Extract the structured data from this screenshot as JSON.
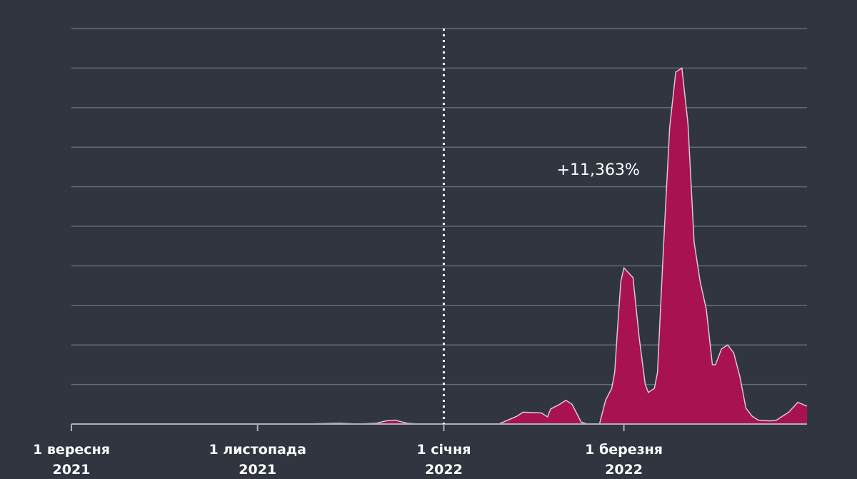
{
  "chart_data": {
    "type": "area",
    "title": "",
    "xlabel": "",
    "ylabel": "",
    "grid": true,
    "y_tick_labels_shown": false,
    "colors": {
      "background": "#30353f",
      "grid": "#646a74",
      "axis": "#aab0b8",
      "fill": "#a8124f",
      "line": "#ffffff",
      "marker": "#ffffff"
    },
    "x_ticks": [
      {
        "date": "2021-09-01",
        "line1": "1 вересня",
        "line2": "2021"
      },
      {
        "date": "2021-11-01",
        "line1": "1 листопада",
        "line2": "2021"
      },
      {
        "date": "2022-01-01",
        "line1": "1 січня",
        "line2": "2022"
      },
      {
        "date": "2022-03-01",
        "line1": "1 березня",
        "line2": "2022"
      }
    ],
    "xlim": [
      "2021-09-01",
      "2022-04-30"
    ],
    "ylim": [
      0,
      10
    ],
    "marker_line": {
      "date": "2022-01-01",
      "style": "dotted"
    },
    "annotation": {
      "text": "+11,363%",
      "date": "2022-02-07",
      "y": 6.3
    },
    "series": [
      {
        "points": [
          [
            "2021-09-01",
            0
          ],
          [
            "2021-10-15",
            0
          ],
          [
            "2021-11-15",
            0
          ],
          [
            "2021-11-28",
            0.02
          ],
          [
            "2021-12-04",
            0
          ],
          [
            "2021-12-10",
            0.02
          ],
          [
            "2021-12-13",
            0.08
          ],
          [
            "2021-12-16",
            0.1
          ],
          [
            "2021-12-20",
            0.02
          ],
          [
            "2021-12-24",
            0
          ],
          [
            "2022-01-01",
            0
          ],
          [
            "2022-01-19",
            0
          ],
          [
            "2022-01-22",
            0.1
          ],
          [
            "2022-01-25",
            0.2
          ],
          [
            "2022-01-27",
            0.3
          ],
          [
            "2022-02-02",
            0.28
          ],
          [
            "2022-02-04",
            0.18
          ],
          [
            "2022-02-05",
            0.38
          ],
          [
            "2022-02-08",
            0.5
          ],
          [
            "2022-02-10",
            0.6
          ],
          [
            "2022-02-12",
            0.5
          ],
          [
            "2022-02-14",
            0.2
          ],
          [
            "2022-02-15",
            0.05
          ],
          [
            "2022-02-17",
            0
          ],
          [
            "2022-02-21",
            0
          ],
          [
            "2022-02-23",
            0.6
          ],
          [
            "2022-02-25",
            0.9
          ],
          [
            "2022-02-26",
            1.3
          ],
          [
            "2022-02-27",
            2.5
          ],
          [
            "2022-02-28",
            3.6
          ],
          [
            "2022-03-01",
            3.95
          ],
          [
            "2022-03-04",
            3.7
          ],
          [
            "2022-03-06",
            2.2
          ],
          [
            "2022-03-08",
            1.0
          ],
          [
            "2022-03-09",
            0.8
          ],
          [
            "2022-03-11",
            0.9
          ],
          [
            "2022-03-12",
            1.3
          ],
          [
            "2022-03-14",
            4.5
          ],
          [
            "2022-03-16",
            7.5
          ],
          [
            "2022-03-18",
            8.9
          ],
          [
            "2022-03-20",
            9.0
          ],
          [
            "2022-03-22",
            7.6
          ],
          [
            "2022-03-24",
            4.6
          ],
          [
            "2022-03-26",
            3.6
          ],
          [
            "2022-03-28",
            2.9
          ],
          [
            "2022-03-30",
            1.5
          ],
          [
            "2022-03-31",
            1.5
          ],
          [
            "2022-04-02",
            1.9
          ],
          [
            "2022-04-04",
            2.0
          ],
          [
            "2022-04-06",
            1.8
          ],
          [
            "2022-04-08",
            1.2
          ],
          [
            "2022-04-10",
            0.4
          ],
          [
            "2022-04-12",
            0.2
          ],
          [
            "2022-04-14",
            0.1
          ],
          [
            "2022-04-18",
            0.08
          ],
          [
            "2022-04-20",
            0.1
          ],
          [
            "2022-04-22",
            0.2
          ],
          [
            "2022-04-24",
            0.3
          ],
          [
            "2022-04-27",
            0.55
          ],
          [
            "2022-04-30",
            0.45
          ]
        ]
      }
    ]
  }
}
